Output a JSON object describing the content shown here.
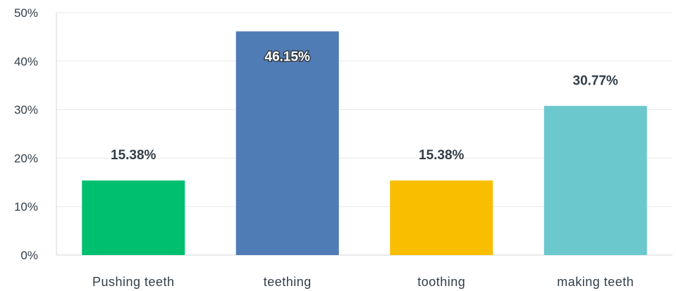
{
  "chart_data": {
    "type": "bar",
    "categories": [
      "Pushing teeth",
      "teething",
      "toothing",
      "making teeth"
    ],
    "values": [
      15.38,
      46.15,
      15.38,
      30.77
    ],
    "data_labels": [
      "15.38%",
      "46.15%",
      "15.38%",
      "30.77%"
    ],
    "colors": [
      "#00bf6f",
      "#507cb6",
      "#f9be00",
      "#6bc8cd"
    ],
    "ylim": [
      0,
      50
    ],
    "yticks": [
      0,
      10,
      20,
      30,
      40,
      50
    ],
    "ytick_labels": [
      "0%",
      "10%",
      "20%",
      "30%",
      "40%",
      "50%"
    ],
    "grid": true,
    "legend": "none"
  }
}
